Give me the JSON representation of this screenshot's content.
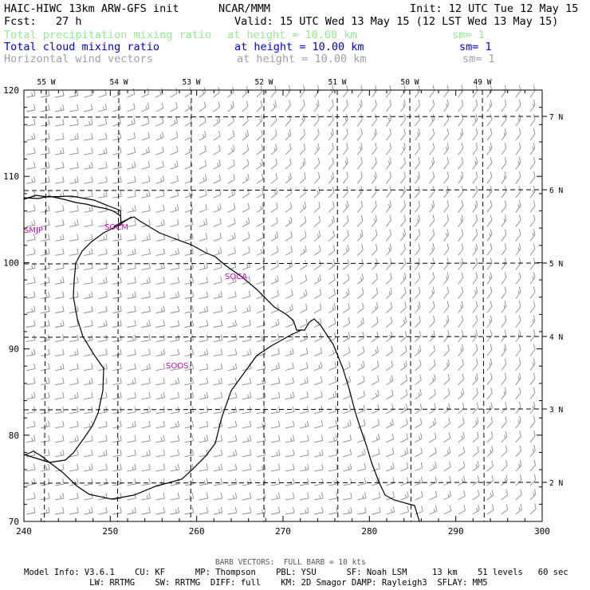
{
  "header": {
    "title": "HAIC-HIWC 13km ARW-GFS init",
    "org": "NCAR/MMM",
    "init": "Init: 12 UTC Tue 12 May 15",
    "fcst": "Fcst:   27 h",
    "valid": "Valid: 15 UTC Wed 13 May 15 (12 LST Wed 13 May 15)",
    "fields": [
      {
        "name": "Total precipitation mixing ratio",
        "level": "at height = 10.00 km",
        "sm": "sm= 1",
        "color": "#90ee90"
      },
      {
        "name": "Total cloud mixing ratio",
        "level": "at height = 10.00 km",
        "sm": "sm= 1",
        "color": "#0000cd"
      },
      {
        "name": "Horizontal wind vectors",
        "level": "at height = 10.00 km",
        "sm": "sm= 1",
        "color": "#a0a0a0"
      }
    ]
  },
  "axes": {
    "x_ticks": [
      "240",
      "250",
      "260",
      "270",
      "280",
      "290",
      "300"
    ],
    "y_ticks": [
      "70",
      "80",
      "90",
      "100",
      "110",
      "120"
    ],
    "lon_labels": [
      "55 W",
      "54 W",
      "53 W",
      "52 W",
      "51 W",
      "50 W",
      "49 W"
    ],
    "lat_labels": [
      "7 N",
      "6 N",
      "5 N",
      "4 N",
      "3 N",
      "2 N"
    ]
  },
  "stations": [
    "SMJP",
    "SOCM",
    "SOCA",
    "SOOS"
  ],
  "footer": {
    "barb": "BARB VECTORS:  FULL BARB = 10 kts",
    "line1": "Model Info: V3.6.1    CU: KF      MP: Thompson    PBL: YSU      SF: Noah LSM     13 km    51 levels   60 sec",
    "line2": "             LW: RRTMG    SW: RRTMG  DIFF: full    KM: 2D Smagor DAMP: Rayleigh3  SFLAY: MM5"
  },
  "colors": {
    "station": "#cc00cc",
    "barb": "#8a8a8a",
    "grid": "#000000",
    "coast": "#000000"
  }
}
